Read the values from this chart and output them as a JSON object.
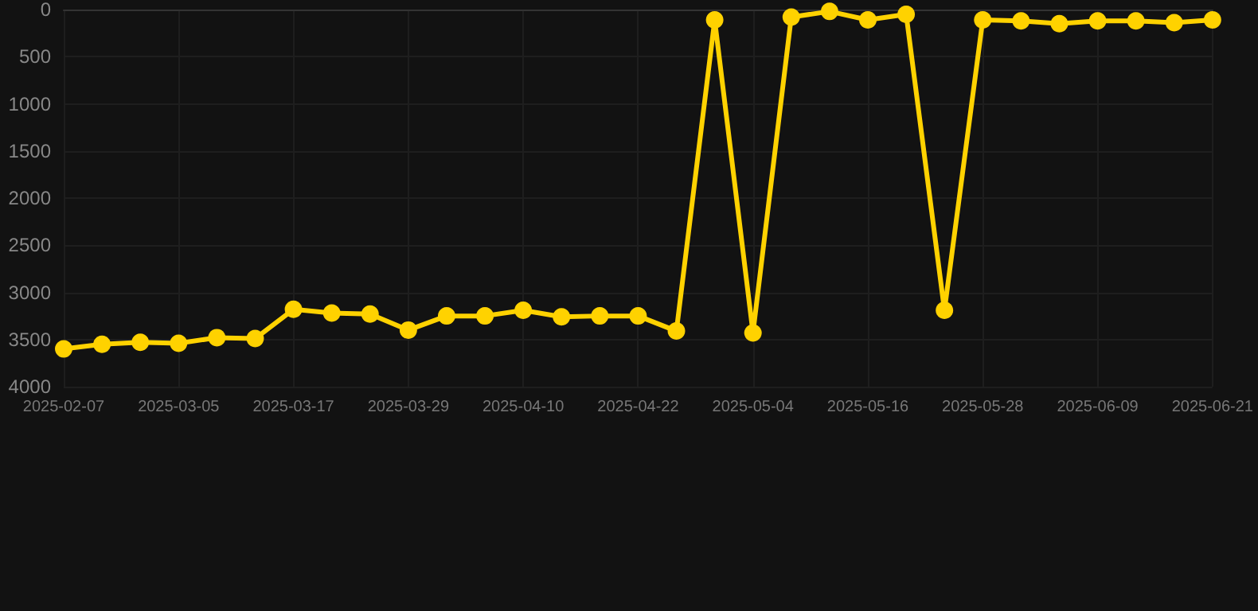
{
  "chart_data": {
    "type": "line",
    "categories": [
      "2025-02-07",
      null,
      null,
      "2025-03-05",
      null,
      null,
      "2025-03-17",
      null,
      null,
      "2025-03-29",
      null,
      null,
      "2025-04-10",
      null,
      null,
      "2025-04-22",
      null,
      null,
      "2025-05-04",
      null,
      null,
      "2025-05-16",
      null,
      null,
      "2025-05-28",
      null,
      null,
      "2025-06-09",
      null,
      null,
      "2025-06-21"
    ],
    "series": [
      {
        "color": "#ffd200",
        "values": [
          3600,
          3550,
          3530,
          3540,
          3480,
          3490,
          3180,
          3220,
          3230,
          3400,
          3250,
          3250,
          3190,
          3260,
          3250,
          3250,
          3410,
          110,
          3430,
          80,
          20,
          110,
          50,
          3190,
          110,
          120,
          150,
          120,
          120,
          140,
          110
        ]
      }
    ],
    "ylim": [
      4000,
      0
    ],
    "yticks": [
      0,
      500,
      1000,
      1500,
      2000,
      2500,
      3000,
      3500,
      4000
    ],
    "grid": true,
    "marker": "circle",
    "line_style": "solid"
  }
}
